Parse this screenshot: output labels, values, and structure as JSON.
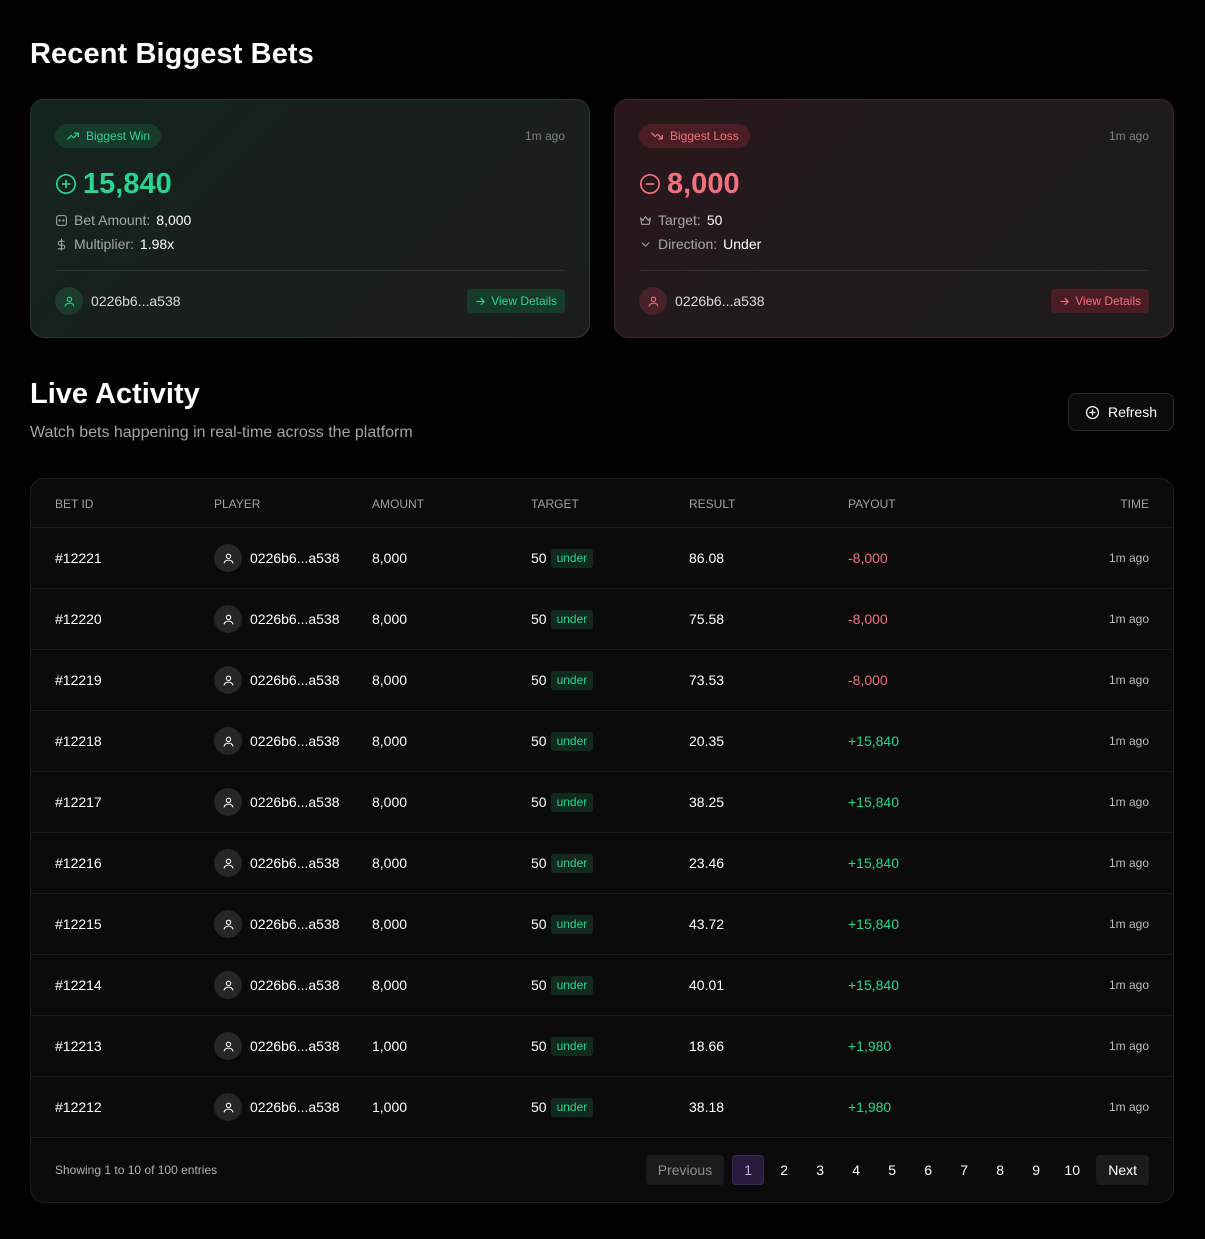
{
  "header": {
    "title": "Recent Biggest Bets"
  },
  "win_card": {
    "badge": "Biggest Win",
    "time": "1m ago",
    "amount": "15,840",
    "meta": [
      {
        "label": "Bet Amount:",
        "value": "8,000",
        "icon": "dice-icon"
      },
      {
        "label": "Multiplier:",
        "value": "1.98x",
        "icon": "dollar-icon"
      }
    ],
    "player": "0226b6...a538",
    "view_label": "View Details",
    "accent": "#2bd48f"
  },
  "loss_card": {
    "badge": "Biggest Loss",
    "time": "1m ago",
    "amount": "8,000",
    "meta": [
      {
        "label": "Target:",
        "value": "50",
        "icon": "crown-icon"
      },
      {
        "label": "Direction:",
        "value": "Under",
        "icon": "chevron-down-icon"
      }
    ],
    "player": "0226b6...a538",
    "view_label": "View Details",
    "accent": "#f0717d"
  },
  "live": {
    "title": "Live Activity",
    "subtitle": "Watch bets happening in real-time across the platform",
    "refresh_label": "Refresh"
  },
  "table": {
    "columns": [
      "BET ID",
      "PLAYER",
      "AMOUNT",
      "TARGET",
      "RESULT",
      "PAYOUT",
      "TIME"
    ],
    "rows": [
      {
        "id": "#12221",
        "player": "0226b6...a538",
        "amount": "8,000",
        "target": "50",
        "direction": "under",
        "result": "86.08",
        "payout": "-8,000",
        "time": "1m ago"
      },
      {
        "id": "#12220",
        "player": "0226b6...a538",
        "amount": "8,000",
        "target": "50",
        "direction": "under",
        "result": "75.58",
        "payout": "-8,000",
        "time": "1m ago"
      },
      {
        "id": "#12219",
        "player": "0226b6...a538",
        "amount": "8,000",
        "target": "50",
        "direction": "under",
        "result": "73.53",
        "payout": "-8,000",
        "time": "1m ago"
      },
      {
        "id": "#12218",
        "player": "0226b6...a538",
        "amount": "8,000",
        "target": "50",
        "direction": "under",
        "result": "20.35",
        "payout": "+15,840",
        "time": "1m ago"
      },
      {
        "id": "#12217",
        "player": "0226b6...a538",
        "amount": "8,000",
        "target": "50",
        "direction": "under",
        "result": "38.25",
        "payout": "+15,840",
        "time": "1m ago"
      },
      {
        "id": "#12216",
        "player": "0226b6...a538",
        "amount": "8,000",
        "target": "50",
        "direction": "under",
        "result": "23.46",
        "payout": "+15,840",
        "time": "1m ago"
      },
      {
        "id": "#12215",
        "player": "0226b6...a538",
        "amount": "8,000",
        "target": "50",
        "direction": "under",
        "result": "43.72",
        "payout": "+15,840",
        "time": "1m ago"
      },
      {
        "id": "#12214",
        "player": "0226b6...a538",
        "amount": "8,000",
        "target": "50",
        "direction": "under",
        "result": "40.01",
        "payout": "+15,840",
        "time": "1m ago"
      },
      {
        "id": "#12213",
        "player": "0226b6...a538",
        "amount": "1,000",
        "target": "50",
        "direction": "under",
        "result": "18.66",
        "payout": "+1,980",
        "time": "1m ago"
      },
      {
        "id": "#12212",
        "player": "0226b6...a538",
        "amount": "1,000",
        "target": "50",
        "direction": "under",
        "result": "38.18",
        "payout": "+1,980",
        "time": "1m ago"
      }
    ]
  },
  "pagination": {
    "showing": "Showing 1 to 10 of 100 entries",
    "previous": "Previous",
    "next": "Next",
    "pages": [
      "1",
      "2",
      "3",
      "4",
      "5",
      "6",
      "7",
      "8",
      "9",
      "10"
    ],
    "current": "1"
  }
}
